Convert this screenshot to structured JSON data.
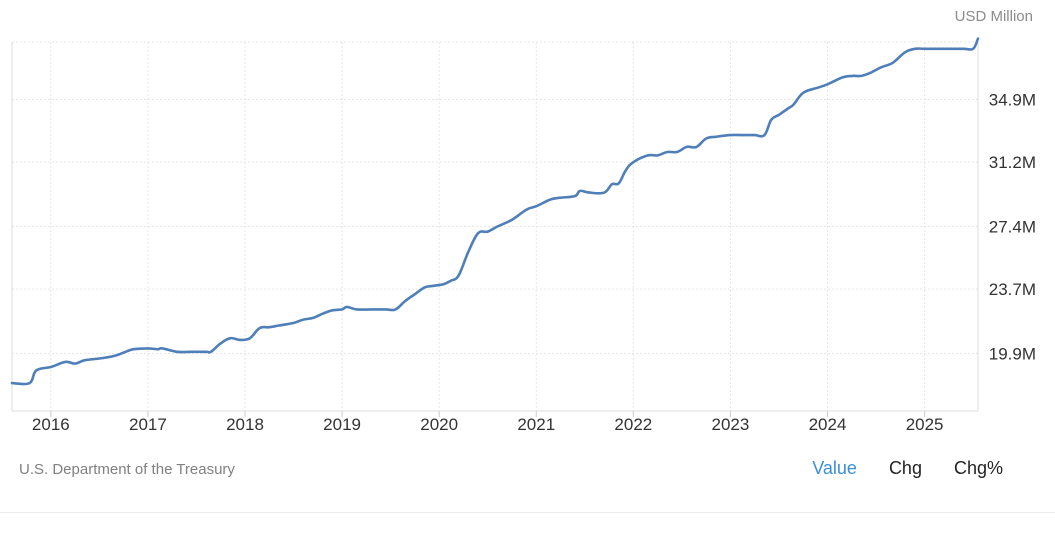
{
  "header": {
    "unit_label": "USD Million"
  },
  "footer": {
    "source": "U.S. Department of the Treasury",
    "tabs": [
      {
        "label": "Value",
        "active": true
      },
      {
        "label": "Chg",
        "active": false
      },
      {
        "label": "Chg%",
        "active": false
      }
    ]
  },
  "colors": {
    "line": "#4f7fb8",
    "grid": "#e6e6e6",
    "active_tab": "#3b8fd9"
  },
  "chart_data": {
    "type": "line",
    "title": "",
    "xlabel": "",
    "ylabel": "",
    "x_ticks": [
      "2016",
      "2017",
      "2018",
      "2019",
      "2020",
      "2021",
      "2022",
      "2023",
      "2024",
      "2025"
    ],
    "y_ticks": [
      "19.9M",
      "23.7M",
      "27.4M",
      "31.2M",
      "34.9M"
    ],
    "y_tick_values": [
      19.9,
      23.7,
      27.4,
      31.2,
      34.9
    ],
    "ylim": [
      16.5,
      38.3
    ],
    "xlim": [
      2015.6,
      2025.55
    ],
    "grid": true,
    "series": [
      {
        "x": [
          2015.6,
          2015.78,
          2015.85,
          2016.0,
          2016.15,
          2016.25,
          2016.35,
          2016.5,
          2016.65,
          2016.75,
          2016.85,
          2017.0,
          2017.1,
          2017.15,
          2017.3,
          2017.45,
          2017.6,
          2017.65,
          2017.75,
          2017.85,
          2017.95,
          2018.05,
          2018.15,
          2018.25,
          2018.35,
          2018.5,
          2018.6,
          2018.7,
          2018.8,
          2018.9,
          2019.0,
          2019.05,
          2019.15,
          2019.3,
          2019.45,
          2019.55,
          2019.65,
          2019.75,
          2019.85,
          2019.95,
          2020.05,
          2020.12,
          2020.2,
          2020.3,
          2020.4,
          2020.5,
          2020.6,
          2020.75,
          2020.9,
          2021.0,
          2021.15,
          2021.25,
          2021.4,
          2021.45,
          2021.55,
          2021.7,
          2021.78,
          2021.85,
          2021.92,
          2022.0,
          2022.15,
          2022.25,
          2022.35,
          2022.45,
          2022.55,
          2022.65,
          2022.75,
          2022.85,
          2023.0,
          2023.15,
          2023.25,
          2023.35,
          2023.42,
          2023.5,
          2023.6,
          2023.65,
          2023.75,
          2023.9,
          2024.0,
          2024.15,
          2024.25,
          2024.35,
          2024.45,
          2024.55,
          2024.65,
          2024.7,
          2024.8,
          2024.9,
          2025.0,
          2025.2,
          2025.4,
          2025.5,
          2025.55
        ],
        "values": [
          18.15,
          18.15,
          18.9,
          19.1,
          19.4,
          19.3,
          19.5,
          19.6,
          19.75,
          19.95,
          20.15,
          20.2,
          20.15,
          20.2,
          20.0,
          20.0,
          20.0,
          20.0,
          20.5,
          20.8,
          20.7,
          20.8,
          21.4,
          21.45,
          21.55,
          21.7,
          21.9,
          22.0,
          22.25,
          22.45,
          22.5,
          22.65,
          22.5,
          22.5,
          22.5,
          22.5,
          23.0,
          23.4,
          23.8,
          23.9,
          24.0,
          24.2,
          24.5,
          25.9,
          27.0,
          27.1,
          27.4,
          27.8,
          28.4,
          28.6,
          29.0,
          29.1,
          29.2,
          29.5,
          29.4,
          29.4,
          29.9,
          29.95,
          30.7,
          31.2,
          31.6,
          31.6,
          31.8,
          31.8,
          32.1,
          32.1,
          32.6,
          32.7,
          32.8,
          32.8,
          32.8,
          32.8,
          33.7,
          34.0,
          34.4,
          34.6,
          35.3,
          35.6,
          35.8,
          36.2,
          36.3,
          36.3,
          36.5,
          36.8,
          37.0,
          37.2,
          37.7,
          37.9,
          37.9,
          37.9,
          37.9,
          37.9,
          38.5
        ]
      }
    ]
  }
}
